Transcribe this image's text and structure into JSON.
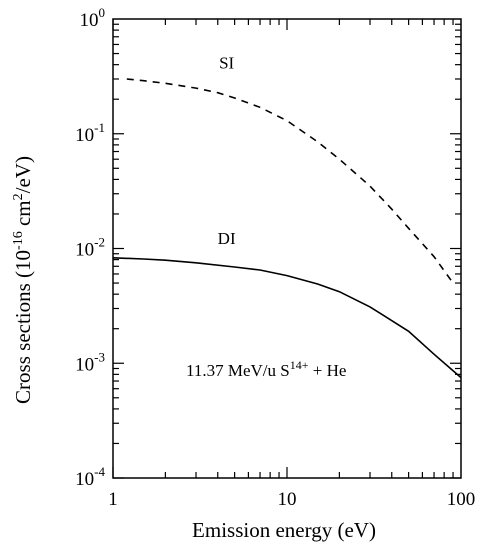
{
  "chart_data": {
    "type": "line",
    "xlabel": "Emission energy (eV)",
    "ylabel": {
      "base": "Cross sections  (10",
      "exp1": "-16",
      "mid": " cm",
      "exp2": "2",
      "end": "/eV)"
    },
    "annotation": {
      "prefix": "11.37 MeV/u S",
      "sup": "14+",
      "suffix": " + He"
    },
    "xscale": "log",
    "yscale": "log",
    "xlim": [
      1,
      100
    ],
    "ylim": [
      0.0001,
      1
    ],
    "x_ticks": [
      {
        "value": 1,
        "label": "1"
      },
      {
        "value": 10,
        "label": "10"
      },
      {
        "value": 100,
        "label": "100"
      }
    ],
    "y_ticks": [
      {
        "value": 1,
        "base": "10",
        "exp": "0"
      },
      {
        "value": 0.1,
        "base": "10",
        "exp": "-1"
      },
      {
        "value": 0.01,
        "base": "10",
        "exp": "-2"
      },
      {
        "value": 0.001,
        "base": "10",
        "exp": "-3"
      },
      {
        "value": 0.0001,
        "base": "10",
        "exp": "-4"
      }
    ],
    "grid": false,
    "series": [
      {
        "name": "SI",
        "style": "dashed",
        "label_at": {
          "x": 4.5,
          "y": 0.37
        },
        "x": [
          1.2,
          1.5,
          2,
          3,
          4,
          5,
          7,
          10,
          15,
          20,
          30,
          40,
          50,
          70,
          90
        ],
        "y": [
          0.3,
          0.29,
          0.275,
          0.25,
          0.228,
          0.205,
          0.17,
          0.13,
          0.085,
          0.06,
          0.035,
          0.022,
          0.015,
          0.0085,
          0.005
        ]
      },
      {
        "name": "DI",
        "style": "solid",
        "label_at": {
          "x": 4.5,
          "y": 0.011
        },
        "x": [
          1,
          1.5,
          2,
          3,
          5,
          7,
          10,
          15,
          20,
          30,
          50,
          70,
          100
        ],
        "y": [
          0.0083,
          0.0081,
          0.0079,
          0.0075,
          0.0069,
          0.0065,
          0.0058,
          0.0049,
          0.0042,
          0.0031,
          0.0019,
          0.0012,
          0.00075
        ]
      }
    ]
  }
}
